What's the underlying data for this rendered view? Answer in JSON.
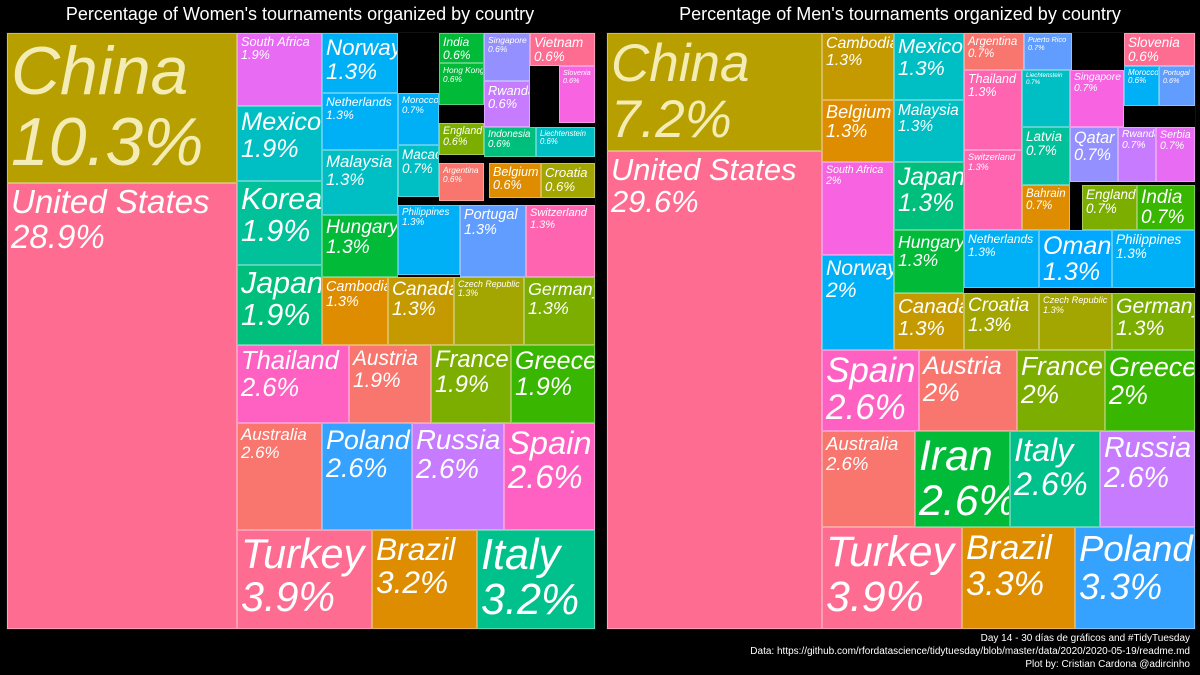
{
  "chart_data": [
    {
      "type": "treemap",
      "title": "Percentage of Women's tournaments organized by country",
      "unit": "%",
      "items": [
        {
          "name": "China",
          "value": 10.3,
          "label": "10.3%",
          "color": "#B79F00"
        },
        {
          "name": "United States",
          "value": 28.9,
          "label": "28.9%",
          "color": "#FF6C91"
        },
        {
          "name": "South Africa",
          "value": 1.9,
          "label": "1.9%",
          "color": "#E76BF3"
        },
        {
          "name": "Norway",
          "value": 1.3,
          "label": "1.3%",
          "color": "#00B0F6"
        },
        {
          "name": "India",
          "value": 0.6,
          "label": "0.6%",
          "color": "#00BA38"
        },
        {
          "name": "Singapore",
          "value": 0.6,
          "label": "0.6%",
          "color": "#9590FF"
        },
        {
          "name": "Vietnam",
          "value": 0.6,
          "label": "0.6%",
          "color": "#FF6C91"
        },
        {
          "name": "Slovenia",
          "value": 0.6,
          "label": "0.6%",
          "color": "#F763E0"
        },
        {
          "name": "Hong Kong",
          "value": 0.6,
          "label": "0.6%",
          "color": "#00BA38"
        },
        {
          "name": "Rwanda",
          "value": 0.6,
          "label": "0.6%",
          "color": "#C77CFF"
        },
        {
          "name": "Mexico",
          "value": 1.9,
          "label": "1.9%",
          "color": "#00BFC4"
        },
        {
          "name": "Netherlands",
          "value": 1.3,
          "label": "1.3%",
          "color": "#00B0F6"
        },
        {
          "name": "Morocco",
          "value": 0.7,
          "label": "0.7%",
          "color": "#00B0F6"
        },
        {
          "name": "England",
          "value": 0.6,
          "label": "0.6%",
          "color": "#7CAE00"
        },
        {
          "name": "Indonesia",
          "value": 0.6,
          "label": "0.6%",
          "color": "#00BF7D"
        },
        {
          "name": "Liechtenstein",
          "value": 0.6,
          "label": "0.6%",
          "color": "#00BFC4"
        },
        {
          "name": "Macao",
          "value": 0.7,
          "label": "0.7%",
          "color": "#00BFC4"
        },
        {
          "name": "Argentina",
          "value": 0.6,
          "label": "0.6%",
          "color": "#F8766D"
        },
        {
          "name": "Belgium",
          "value": 0.6,
          "label": "0.6%",
          "color": "#DE8C00"
        },
        {
          "name": "Croatia",
          "value": 0.6,
          "label": "0.6%",
          "color": "#A3A500"
        },
        {
          "name": "Malaysia",
          "value": 1.3,
          "label": "1.3%",
          "color": "#00BFC4"
        },
        {
          "name": "Korea",
          "value": 1.9,
          "label": "1.9%",
          "color": "#00C19A"
        },
        {
          "name": "Hungary",
          "value": 1.3,
          "label": "1.3%",
          "color": "#00BA38"
        },
        {
          "name": "Philippines",
          "value": 1.3,
          "label": "1.3%",
          "color": "#00B0F6"
        },
        {
          "name": "Portugal",
          "value": 1.3,
          "label": "1.3%",
          "color": "#619CFF"
        },
        {
          "name": "Switzerland",
          "value": 1.3,
          "label": "1.3%",
          "color": "#FF64B0"
        },
        {
          "name": "Japan",
          "value": 1.9,
          "label": "1.9%",
          "color": "#00BF7D"
        },
        {
          "name": "Cambodia",
          "value": 1.3,
          "label": "1.3%",
          "color": "#DE8C00"
        },
        {
          "name": "Canada",
          "value": 1.3,
          "label": "1.3%",
          "color": "#C49A00"
        },
        {
          "name": "Czech Republic",
          "value": 1.3,
          "label": "1.3%",
          "color": "#A3A500"
        },
        {
          "name": "Germany",
          "value": 1.3,
          "label": "1.3%",
          "color": "#7CAE00"
        },
        {
          "name": "Thailand",
          "value": 2.6,
          "label": "2.6%",
          "color": "#FF61C3"
        },
        {
          "name": "Austria",
          "value": 1.9,
          "label": "1.9%",
          "color": "#F8766D"
        },
        {
          "name": "France",
          "value": 1.9,
          "label": "1.9%",
          "color": "#7CAE00"
        },
        {
          "name": "Greece",
          "value": 1.9,
          "label": "1.9%",
          "color": "#39B600"
        },
        {
          "name": "Australia",
          "value": 2.6,
          "label": "2.6%",
          "color": "#F8766D"
        },
        {
          "name": "Poland",
          "value": 2.6,
          "label": "2.6%",
          "color": "#35A2FF"
        },
        {
          "name": "Russia",
          "value": 2.6,
          "label": "2.6%",
          "color": "#C77CFF"
        },
        {
          "name": "Spain",
          "value": 2.6,
          "label": "2.6%",
          "color": "#FF61C3"
        },
        {
          "name": "Turkey",
          "value": 3.9,
          "label": "3.9%",
          "color": "#FF6C91"
        },
        {
          "name": "Brazil",
          "value": 3.2,
          "label": "3.2%",
          "color": "#DE8C00"
        },
        {
          "name": "Italy",
          "value": 3.2,
          "label": "3.2%",
          "color": "#00C08B"
        }
      ]
    },
    {
      "type": "treemap",
      "title": "Percentage of Men's tournaments organized by country",
      "unit": "%",
      "items": [
        {
          "name": "China",
          "value": 7.2,
          "label": "7.2%",
          "color": "#B79F00"
        },
        {
          "name": "United States",
          "value": 29.6,
          "label": "29.6%",
          "color": "#FF6C91"
        },
        {
          "name": "Cambodia",
          "value": 1.3,
          "label": "1.3%",
          "color": "#C49A00"
        },
        {
          "name": "Mexico",
          "value": 1.3,
          "label": "1.3%",
          "color": "#00BFC4"
        },
        {
          "name": "Argentina",
          "value": 0.7,
          "label": "0.7%",
          "color": "#F8766D"
        },
        {
          "name": "Puerto Rico",
          "value": 0.7,
          "label": "0.7%",
          "color": "#619CFF"
        },
        {
          "name": "Slovenia",
          "value": 0.6,
          "label": "0.6%",
          "color": "#FF6C91"
        },
        {
          "name": "Morocco",
          "value": 0.6,
          "label": "0.6%",
          "color": "#00B0F6"
        },
        {
          "name": "Portugal",
          "value": 0.6,
          "label": "0.6%",
          "color": "#619CFF"
        },
        {
          "name": "Belgium",
          "value": 1.3,
          "label": "1.3%",
          "color": "#DE8C00"
        },
        {
          "name": "Malaysia",
          "value": 1.3,
          "label": "1.3%",
          "color": "#00BFC4"
        },
        {
          "name": "Thailand",
          "value": 1.3,
          "label": "1.3%",
          "color": "#FF64B0"
        },
        {
          "name": "Liechtenstein",
          "value": 0.7,
          "label": "0.7%",
          "color": "#00BFC4"
        },
        {
          "name": "Singapore",
          "value": 0.7,
          "label": "0.7%",
          "color": "#F763E0"
        },
        {
          "name": "South Africa",
          "value": 2,
          "label": "2%",
          "color": "#F763E0"
        },
        {
          "name": "Qatar",
          "value": 0.7,
          "label": "0.7%",
          "color": "#9590FF"
        },
        {
          "name": "Rwanda",
          "value": 0.7,
          "label": "0.7%",
          "color": "#C77CFF"
        },
        {
          "name": "Serbia",
          "value": 0.7,
          "label": "0.7%",
          "color": "#E76BF3"
        },
        {
          "name": "Japan",
          "value": 1.3,
          "label": "1.3%",
          "color": "#00BF7D"
        },
        {
          "name": "Switzerland",
          "value": 1.3,
          "label": "1.3%",
          "color": "#FF64B0"
        },
        {
          "name": "Latvia",
          "value": 0.7,
          "label": "0.7%",
          "color": "#00C19A"
        },
        {
          "name": "Bahrain",
          "value": 0.7,
          "label": "0.7%",
          "color": "#DE8C00"
        },
        {
          "name": "England",
          "value": 0.7,
          "label": "0.7%",
          "color": "#7CAE00"
        },
        {
          "name": "India",
          "value": 0.7,
          "label": "0.7%",
          "color": "#39B600"
        },
        {
          "name": "Hungary",
          "value": 1.3,
          "label": "1.3%",
          "color": "#00BA38"
        },
        {
          "name": "Netherlands",
          "value": 1.3,
          "label": "1.3%",
          "color": "#00B0F6"
        },
        {
          "name": "Oman",
          "value": 1.3,
          "label": "1.3%",
          "color": "#00A9FF"
        },
        {
          "name": "Philippines",
          "value": 1.3,
          "label": "1.3%",
          "color": "#00B0F6"
        },
        {
          "name": "Norway",
          "value": 2,
          "label": "2%",
          "color": "#00B0F6"
        },
        {
          "name": "Canada",
          "value": 1.3,
          "label": "1.3%",
          "color": "#C49A00"
        },
        {
          "name": "Croatia",
          "value": 1.3,
          "label": "1.3%",
          "color": "#A3A500"
        },
        {
          "name": "Czech Republic",
          "value": 1.3,
          "label": "1.3%",
          "color": "#A3A500"
        },
        {
          "name": "Germany",
          "value": 1.3,
          "label": "1.3%",
          "color": "#7CAE00"
        },
        {
          "name": "Spain",
          "value": 2.6,
          "label": "2.6%",
          "color": "#FF61C3"
        },
        {
          "name": "Austria",
          "value": 2,
          "label": "2%",
          "color": "#F8766D"
        },
        {
          "name": "France",
          "value": 2,
          "label": "2%",
          "color": "#7CAE00"
        },
        {
          "name": "Greece",
          "value": 2,
          "label": "2%",
          "color": "#39B600"
        },
        {
          "name": "Australia",
          "value": 2.6,
          "label": "2.6%",
          "color": "#F8766D"
        },
        {
          "name": "Iran",
          "value": 2.6,
          "label": "2.6%",
          "color": "#00BA38"
        },
        {
          "name": "Italy",
          "value": 2.6,
          "label": "2.6%",
          "color": "#00C08B"
        },
        {
          "name": "Russia",
          "value": 2.6,
          "label": "2.6%",
          "color": "#C77CFF"
        },
        {
          "name": "Turkey",
          "value": 3.9,
          "label": "3.9%",
          "color": "#FF6C91"
        },
        {
          "name": "Brazil",
          "value": 3.3,
          "label": "3.3%",
          "color": "#DE8C00"
        },
        {
          "name": "Poland",
          "value": 3.3,
          "label": "3.3%",
          "color": "#35A2FF"
        }
      ]
    }
  ],
  "footer": {
    "line1": "Day 14 - 30 días de gráficos and #TidyTuesday",
    "line2": "Data: https://github.com/rfordatascience/tidytuesday/blob/master/data/2020/2020-05-19/readme.md",
    "line3": "Plot by: Cristian Cardona @adircinho"
  }
}
